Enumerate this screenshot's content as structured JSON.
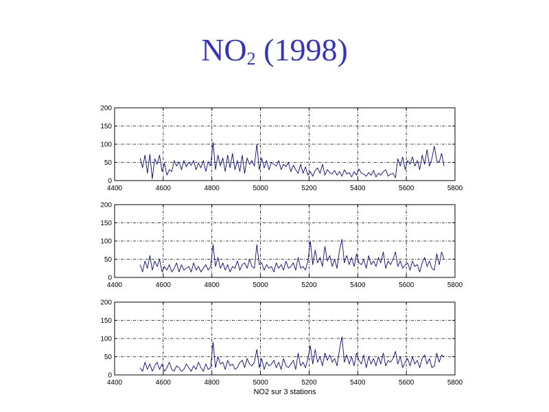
{
  "slide": {
    "title_main": "NO",
    "title_sub": "2",
    "title_rest": " (1998)"
  },
  "colors": {
    "title": "#3333cc",
    "line": "#0000aa"
  },
  "chart_data": [
    {
      "type": "line",
      "title": "",
      "xlabel": "",
      "ylabel": "",
      "xlim": [
        4400,
        5800
      ],
      "ylim": [
        0,
        200
      ],
      "xticks": [
        4400,
        4600,
        4800,
        5000,
        5200,
        5400,
        5600,
        5800
      ],
      "yticks": [
        0,
        50,
        100,
        150,
        200
      ],
      "grid": true,
      "series": [
        {
          "x": [
            4505,
            4515,
            4525,
            4535,
            4545,
            4555,
            4565,
            4575,
            4585,
            4595,
            4605,
            4615,
            4625,
            4635,
            4645,
            4655,
            4665,
            4675,
            4685,
            4695,
            4705,
            4715,
            4725,
            4735,
            4745,
            4755,
            4765,
            4775,
            4785,
            4795,
            4805,
            4815,
            4825,
            4835,
            4845,
            4855,
            4865,
            4875,
            4885,
            4895,
            4905,
            4915,
            4925,
            4935,
            4945,
            4955,
            4965,
            4975,
            4985,
            4995,
            5005,
            5015,
            5025,
            5035,
            5045,
            5055,
            5065,
            5075,
            5085,
            5095,
            5105,
            5115,
            5125,
            5135,
            5145,
            5155,
            5165,
            5175,
            5185,
            5195,
            5205,
            5215,
            5225,
            5235,
            5245,
            5255,
            5265,
            5275,
            5285,
            5295,
            5305,
            5315,
            5325,
            5335,
            5345,
            5355,
            5365,
            5375,
            5385,
            5395,
            5405,
            5415,
            5425,
            5435,
            5445,
            5455,
            5465,
            5475,
            5485,
            5495,
            5505,
            5515,
            5525,
            5535,
            5545,
            5555,
            5565,
            5575,
            5585,
            5595,
            5605,
            5615,
            5625,
            5635,
            5645,
            5655,
            5665,
            5675,
            5685,
            5695,
            5705,
            5715,
            5725,
            5735,
            5745,
            5755
          ],
          "y": [
            62,
            35,
            70,
            20,
            72,
            5,
            60,
            45,
            70,
            25,
            48,
            15,
            30,
            25,
            55,
            40,
            52,
            30,
            55,
            38,
            50,
            42,
            55,
            30,
            48,
            35,
            55,
            25,
            52,
            40,
            105,
            30,
            70,
            40,
            62,
            25,
            70,
            35,
            75,
            30,
            55,
            25,
            70,
            20,
            62,
            45,
            55,
            40,
            100,
            30,
            62,
            35,
            55,
            30,
            50,
            45,
            40,
            55,
            30,
            45,
            38,
            50,
            25,
            42,
            30,
            20,
            45,
            20,
            38,
            15,
            25,
            12,
            28,
            35,
            20,
            45,
            15,
            30,
            22,
            18,
            28,
            15,
            25,
            12,
            30,
            18,
            22,
            10,
            25,
            15,
            32,
            20,
            18,
            12,
            22,
            15,
            28,
            10,
            20,
            15,
            25,
            30,
            12,
            18,
            20,
            8,
            60,
            40,
            65,
            30,
            55,
            45,
            65,
            40,
            55,
            30,
            70,
            45,
            85,
            40,
            60,
            95,
            55,
            50,
            75,
            40
          ]
        }
      ]
    },
    {
      "type": "line",
      "title": "",
      "xlabel": "",
      "ylabel": "",
      "xlim": [
        4400,
        5800
      ],
      "ylim": [
        0,
        200
      ],
      "xticks": [
        4400,
        4600,
        4800,
        5000,
        5200,
        5400,
        5600,
        5800
      ],
      "yticks": [
        0,
        50,
        100,
        150,
        200
      ],
      "grid": true,
      "series": [
        {
          "x": [
            4505,
            4515,
            4525,
            4535,
            4545,
            4555,
            4565,
            4575,
            4585,
            4595,
            4605,
            4615,
            4625,
            4635,
            4645,
            4655,
            4665,
            4675,
            4685,
            4695,
            4705,
            4715,
            4725,
            4735,
            4745,
            4755,
            4765,
            4775,
            4785,
            4795,
            4805,
            4815,
            4825,
            4835,
            4845,
            4855,
            4865,
            4875,
            4885,
            4895,
            4905,
            4915,
            4925,
            4935,
            4945,
            4955,
            4965,
            4975,
            4985,
            4995,
            5005,
            5015,
            5025,
            5035,
            5045,
            5055,
            5065,
            5075,
            5085,
            5095,
            5105,
            5115,
            5125,
            5135,
            5145,
            5155,
            5165,
            5175,
            5185,
            5195,
            5205,
            5215,
            5225,
            5235,
            5245,
            5255,
            5265,
            5275,
            5285,
            5295,
            5305,
            5315,
            5325,
            5335,
            5345,
            5355,
            5365,
            5375,
            5385,
            5395,
            5405,
            5415,
            5425,
            5435,
            5445,
            5455,
            5465,
            5475,
            5485,
            5495,
            5505,
            5515,
            5525,
            5535,
            5545,
            5555,
            5565,
            5575,
            5585,
            5595,
            5605,
            5615,
            5625,
            5635,
            5645,
            5655,
            5665,
            5675,
            5685,
            5695,
            5705,
            5715,
            5725,
            5735,
            5745,
            5755
          ],
          "y": [
            35,
            15,
            45,
            25,
            60,
            20,
            45,
            30,
            50,
            15,
            30,
            20,
            35,
            15,
            25,
            40,
            15,
            35,
            20,
            25,
            30,
            15,
            40,
            20,
            30,
            15,
            25,
            35,
            20,
            30,
            90,
            30,
            55,
            25,
            40,
            20,
            35,
            15,
            30,
            25,
            45,
            20,
            35,
            40,
            25,
            50,
            30,
            25,
            90,
            35,
            40,
            20,
            35,
            25,
            30,
            15,
            40,
            25,
            35,
            20,
            45,
            25,
            30,
            40,
            20,
            55,
            25,
            30,
            20,
            45,
            100,
            35,
            75,
            40,
            55,
            30,
            85,
            45,
            60,
            30,
            50,
            25,
            75,
            105,
            40,
            60,
            35,
            55,
            30,
            65,
            40,
            35,
            50,
            25,
            60,
            35,
            45,
            30,
            55,
            40,
            70,
            25,
            45,
            35,
            50,
            70,
            30,
            45,
            25,
            35,
            40,
            20,
            45,
            30,
            35,
            15,
            40,
            55,
            30,
            45,
            25,
            20,
            65,
            35,
            70,
            50
          ]
        }
      ]
    },
    {
      "type": "line",
      "title": "",
      "xlabel": "NO2 sur 3 stations",
      "ylabel": "",
      "xlim": [
        4400,
        5800
      ],
      "ylim": [
        0,
        200
      ],
      "xticks": [
        4400,
        4600,
        4800,
        5000,
        5200,
        5400,
        5600,
        5800
      ],
      "yticks": [
        0,
        50,
        100,
        150,
        200
      ],
      "grid": true,
      "series": [
        {
          "x": [
            4505,
            4515,
            4525,
            4535,
            4545,
            4555,
            4565,
            4575,
            4585,
            4595,
            4605,
            4615,
            4625,
            4635,
            4645,
            4655,
            4665,
            4675,
            4685,
            4695,
            4705,
            4715,
            4725,
            4735,
            4745,
            4755,
            4765,
            4775,
            4785,
            4795,
            4805,
            4815,
            4825,
            4835,
            4845,
            4855,
            4865,
            4875,
            4885,
            4895,
            4905,
            4915,
            4925,
            4935,
            4945,
            4955,
            4965,
            4975,
            4985,
            4995,
            5005,
            5015,
            5025,
            5035,
            5045,
            5055,
            5065,
            5075,
            5085,
            5095,
            5105,
            5115,
            5125,
            5135,
            5145,
            5155,
            5165,
            5175,
            5185,
            5195,
            5205,
            5215,
            5225,
            5235,
            5245,
            5255,
            5265,
            5275,
            5285,
            5295,
            5305,
            5315,
            5325,
            5335,
            5345,
            5355,
            5365,
            5375,
            5385,
            5395,
            5405,
            5415,
            5425,
            5435,
            5445,
            5455,
            5465,
            5475,
            5485,
            5495,
            5505,
            5515,
            5525,
            5535,
            5545,
            5555,
            5565,
            5575,
            5585,
            5595,
            5605,
            5615,
            5625,
            5635,
            5645,
            5655,
            5665,
            5675,
            5685,
            5695,
            5705,
            5715,
            5725,
            5735,
            5745,
            5755
          ],
          "y": [
            20,
            10,
            35,
            15,
            30,
            10,
            25,
            35,
            15,
            30,
            10,
            20,
            35,
            15,
            10,
            25,
            20,
            10,
            15,
            30,
            20,
            10,
            25,
            15,
            35,
            20,
            10,
            30,
            15,
            20,
            90,
            20,
            50,
            30,
            35,
            15,
            40,
            25,
            30,
            15,
            20,
            35,
            40,
            20,
            45,
            30,
            25,
            35,
            70,
            20,
            45,
            15,
            35,
            25,
            30,
            40,
            20,
            35,
            15,
            45,
            25,
            20,
            30,
            40,
            15,
            60,
            25,
            35,
            20,
            45,
            80,
            30,
            70,
            35,
            50,
            25,
            60,
            40,
            55,
            35,
            45,
            25,
            70,
            105,
            35,
            55,
            30,
            50,
            25,
            60,
            40,
            30,
            55,
            20,
            50,
            30,
            45,
            25,
            50,
            30,
            60,
            25,
            40,
            35,
            45,
            65,
            30,
            50,
            20,
            35,
            45,
            25,
            50,
            30,
            40,
            20,
            45,
            55,
            30,
            45,
            20,
            25,
            60,
            35,
            55,
            50
          ]
        }
      ]
    }
  ]
}
